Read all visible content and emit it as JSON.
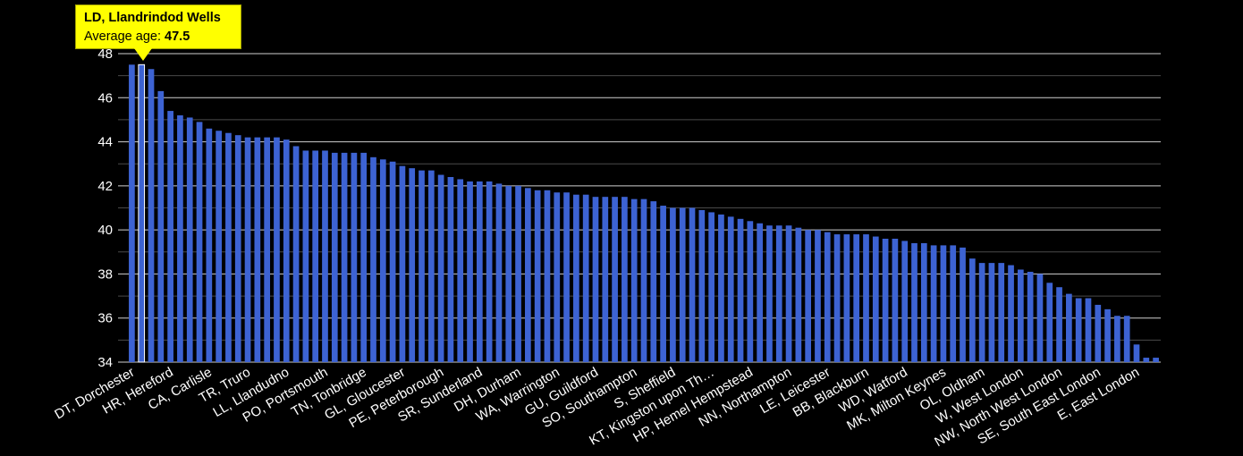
{
  "chart_data": {
    "type": "bar",
    "ylim": [
      34,
      48
    ],
    "yticks": [
      34,
      36,
      38,
      40,
      42,
      44,
      46,
      48
    ],
    "grid": true,
    "colors": {
      "bar": "#3d63d3",
      "highlight_bar": "#3d63d3",
      "background": "#000000",
      "grid": "#ffffff",
      "tooltip": "#ffff00"
    },
    "highlight_index": 1,
    "tick_labels": [
      {
        "index": 0,
        "label": "DT, Dorchester"
      },
      {
        "index": 4,
        "label": "HR, Hereford"
      },
      {
        "index": 8,
        "label": "CA, Carlisle"
      },
      {
        "index": 12,
        "label": "TR, Truro"
      },
      {
        "index": 16,
        "label": "LL, Llandudno"
      },
      {
        "index": 20,
        "label": "PO, Portsmouth"
      },
      {
        "index": 24,
        "label": "TN, Tonbridge"
      },
      {
        "index": 28,
        "label": "GL, Gloucester"
      },
      {
        "index": 32,
        "label": "PE, Peterborough"
      },
      {
        "index": 36,
        "label": "SR, Sunderland"
      },
      {
        "index": 40,
        "label": "DH, Durham"
      },
      {
        "index": 44,
        "label": "WA, Warrington"
      },
      {
        "index": 48,
        "label": "GU, Guildford"
      },
      {
        "index": 52,
        "label": "SO, Southampton"
      },
      {
        "index": 56,
        "label": "S, Sheffield"
      },
      {
        "index": 60,
        "label": "KT, Kingston upon Th…"
      },
      {
        "index": 64,
        "label": "HP, Hemel Hempstead"
      },
      {
        "index": 68,
        "label": "NN, Northampton"
      },
      {
        "index": 72,
        "label": "LE, Leicester"
      },
      {
        "index": 76,
        "label": "BB, Blackburn"
      },
      {
        "index": 80,
        "label": "WD, Watford"
      },
      {
        "index": 84,
        "label": "MK, Milton Keynes"
      },
      {
        "index": 88,
        "label": "OL, Oldham"
      },
      {
        "index": 92,
        "label": "W, West London"
      },
      {
        "index": 96,
        "label": "NW, North West London"
      },
      {
        "index": 100,
        "label": "SE, South East London"
      },
      {
        "index": 104,
        "label": "E, East London"
      }
    ],
    "values": [
      47.5,
      47.5,
      47.3,
      46.3,
      45.4,
      45.2,
      45.1,
      44.9,
      44.6,
      44.5,
      44.4,
      44.3,
      44.2,
      44.2,
      44.2,
      44.2,
      44.1,
      43.8,
      43.6,
      43.6,
      43.6,
      43.5,
      43.5,
      43.5,
      43.5,
      43.3,
      43.2,
      43.1,
      42.9,
      42.8,
      42.7,
      42.7,
      42.5,
      42.4,
      42.3,
      42.2,
      42.2,
      42.2,
      42.1,
      42.0,
      42.0,
      41.9,
      41.8,
      41.8,
      41.7,
      41.7,
      41.6,
      41.6,
      41.5,
      41.5,
      41.5,
      41.5,
      41.4,
      41.4,
      41.3,
      41.1,
      41.0,
      41.0,
      41.0,
      40.9,
      40.8,
      40.7,
      40.6,
      40.5,
      40.4,
      40.3,
      40.2,
      40.2,
      40.2,
      40.1,
      40.0,
      40.0,
      39.9,
      39.8,
      39.8,
      39.8,
      39.8,
      39.7,
      39.6,
      39.6,
      39.5,
      39.4,
      39.4,
      39.3,
      39.3,
      39.3,
      39.2,
      38.7,
      38.5,
      38.5,
      38.5,
      38.4,
      38.2,
      38.1,
      38.0,
      37.6,
      37.4,
      37.1,
      36.9,
      36.9,
      36.6,
      36.4,
      36.1,
      36.1,
      34.8,
      34.2,
      34.2
    ],
    "tooltip": {
      "title": "LD, Llandrindod Wells",
      "label": "Average age:",
      "value": "47.5"
    }
  }
}
